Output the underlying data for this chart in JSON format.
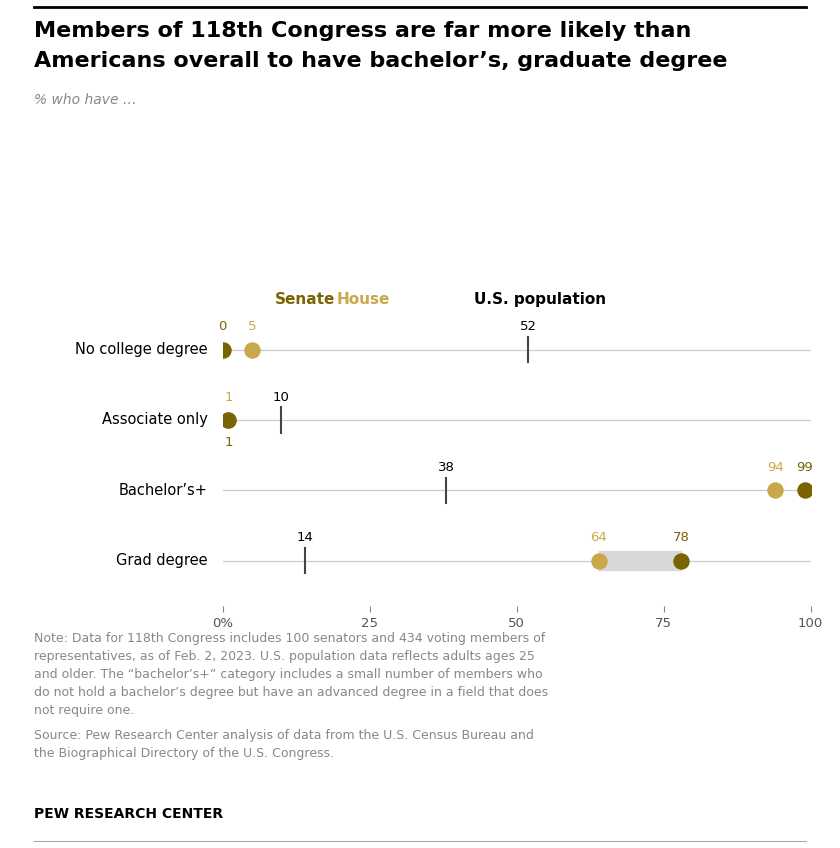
{
  "title_line1": "Members of 118th Congress are far more likely than",
  "title_line2": "Americans overall to have bachelor’s, graduate degree",
  "subtitle": "% who have …",
  "categories": [
    "No college degree",
    "Associate only",
    "Bachelor’s+",
    "Grad degree"
  ],
  "senate_values": [
    0,
    1,
    99,
    78
  ],
  "house_values": [
    5,
    1,
    94,
    64
  ],
  "us_pop_values": [
    52,
    10,
    38,
    14
  ],
  "senate_color": "#7a6300",
  "house_color": "#c9a84c",
  "note_text": "Note: Data for 118th Congress includes 100 senators and 434 voting members of\nrepresentatives, as of Feb. 2, 2023. U.S. population data reflects adults ages 25\nand older. The “bachelor’s+” category includes a small number of members who\ndo not hold a bachelor’s degree but have an advanced degree in a field that does\nnot require one.",
  "source_text": "Source: Pew Research Center analysis of data from the U.S. Census Bureau and\nthe Biographical Directory of the U.S. Congress.",
  "branding": "PEW RESEARCH CENTER",
  "xlim": [
    0,
    100
  ],
  "xticks": [
    0,
    25,
    50,
    75,
    100
  ],
  "xticklabels": [
    "0%",
    "25",
    "50",
    "75",
    "100"
  ],
  "background_color": "#ffffff",
  "line_color": "#cccccc",
  "dot_size": 140,
  "legend_senate_label": "Senate",
  "legend_house_label": "House",
  "legend_us_label": "U.S. population"
}
